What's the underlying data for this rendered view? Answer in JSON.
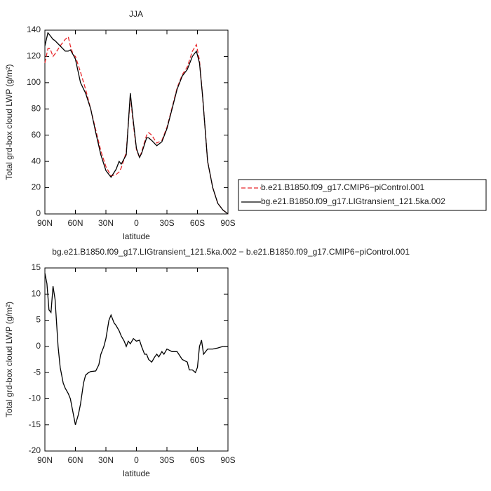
{
  "chart_data": [
    {
      "type": "line",
      "title": "JJA",
      "xlabel": "latitude",
      "ylabel": "Total grd-box cloud LWP (g/m²)",
      "x": [
        90,
        87,
        85,
        82,
        80,
        75,
        70,
        67,
        65,
        62,
        60,
        55,
        50,
        45,
        40,
        35,
        30,
        25,
        20,
        17,
        15,
        10,
        6,
        3,
        0,
        -3,
        -5,
        -10,
        -12,
        -15,
        -20,
        -25,
        -30,
        -35,
        -40,
        -45,
        -50,
        -55,
        -59,
        -62,
        -65,
        -70,
        -75,
        -80,
        -85,
        -90
      ],
      "series": [
        {
          "name": "b.e21.B1850.f09_g17.CMIP6−piControl.001",
          "color": "#e8262a",
          "dash": true,
          "values": [
            115,
            126,
            126,
            120,
            122,
            128,
            133,
            135,
            128,
            121,
            120,
            108,
            95,
            80,
            64,
            48,
            36,
            29,
            30,
            32,
            35,
            47,
            90,
            68,
            49,
            43,
            47,
            60,
            62,
            60,
            54,
            56,
            66,
            81,
            96,
            106,
            112,
            124,
            129,
            117,
            90,
            40,
            20,
            8,
            3,
            0
          ]
        },
        {
          "name": "bg.e21.B1850.f09_g17.LIGtransient_121.5ka.002",
          "color": "#000000",
          "dash": false,
          "values": [
            128,
            138,
            136,
            133,
            132,
            128,
            124,
            124,
            125,
            121,
            118,
            100,
            92,
            80,
            62,
            45,
            33,
            28,
            34,
            40,
            38,
            45,
            92,
            70,
            50,
            43,
            46,
            58,
            58,
            56,
            52,
            55,
            65,
            80,
            95,
            105,
            110,
            120,
            124,
            115,
            90,
            40,
            20,
            8,
            3,
            0
          ]
        }
      ],
      "xlim": [
        90,
        -90
      ],
      "ylim": [
        0,
        140
      ],
      "xticks": [
        {
          "value": 90,
          "label": "90N"
        },
        {
          "value": 60,
          "label": "60N"
        },
        {
          "value": 30,
          "label": "30N"
        },
        0,
        {
          "value": -30,
          "label": "30S"
        },
        {
          "value": -60,
          "label": "60S"
        },
        {
          "value": -90,
          "label": "90S"
        }
      ],
      "yticks": [
        0,
        20,
        40,
        60,
        80,
        100,
        120,
        140
      ],
      "legend": "right"
    },
    {
      "type": "line",
      "title": "bg.e21.B1850.f09_g17.LIGtransient_121.5ka.002 − b.e21.B1850.f09_g17.CMIP6−piControl.001",
      "xlabel": "latitude",
      "ylabel": "Total grd-box cloud LWP (g/m²)",
      "x": [
        90,
        88,
        86,
        84,
        82,
        80,
        77,
        75,
        72,
        70,
        67,
        65,
        62,
        60,
        57,
        55,
        52,
        50,
        47,
        45,
        40,
        37,
        35,
        32,
        30,
        27,
        25,
        22,
        20,
        17,
        15,
        12,
        10,
        8,
        6,
        3,
        0,
        -3,
        -5,
        -8,
        -10,
        -12,
        -15,
        -18,
        -20,
        -22,
        -25,
        -27,
        -30,
        -35,
        -40,
        -45,
        -50,
        -52,
        -55,
        -58,
        -60,
        -62,
        -64,
        -66,
        -70,
        -75,
        -80,
        -85,
        -90
      ],
      "color": "#000000",
      "values": [
        14,
        12,
        7,
        6.5,
        11.5,
        9,
        0,
        -4,
        -7,
        -8,
        -9,
        -10,
        -13,
        -15,
        -13,
        -11,
        -7,
        -5.5,
        -5,
        -4.8,
        -4.7,
        -3.5,
        -1.5,
        0,
        1.5,
        5,
        6,
        4.5,
        4,
        3,
        2,
        1,
        0,
        1,
        0.5,
        1.5,
        1,
        1.2,
        0,
        -1.5,
        -1.5,
        -2.5,
        -3,
        -2,
        -1.5,
        -2,
        -1,
        -1.5,
        -0.5,
        -1,
        -1,
        -2.5,
        -3,
        -4.5,
        -4.5,
        -5,
        -4,
        0,
        1.2,
        -1.5,
        -0.5,
        -0.5,
        -0.3,
        0,
        0
      ],
      "xlim": [
        90,
        -90
      ],
      "ylim": [
        -20,
        15
      ],
      "xticks": [
        {
          "value": 90,
          "label": "90N"
        },
        {
          "value": 60,
          "label": "60N"
        },
        {
          "value": 30,
          "label": "30N"
        },
        0,
        {
          "value": -30,
          "label": "30S"
        },
        {
          "value": -60,
          "label": "60S"
        },
        {
          "value": -90,
          "label": "90S"
        }
      ],
      "yticks": [
        -20,
        -15,
        -10,
        -5,
        0,
        5,
        10,
        15
      ]
    }
  ]
}
